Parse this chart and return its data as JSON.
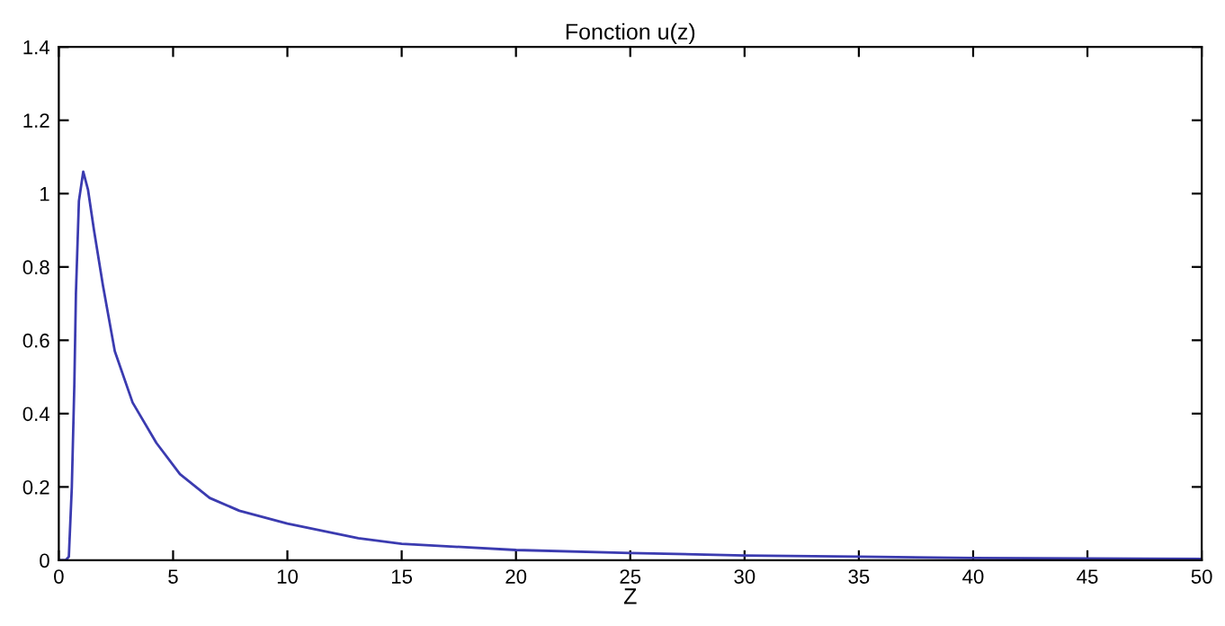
{
  "chart_data": {
    "type": "line",
    "title": "Fonction u(z)",
    "xlabel": "Z",
    "x": [
      0,
      0.3,
      0.44,
      0.57,
      0.68,
      0.75,
      0.88,
      1.07,
      1.28,
      1.54,
      1.93,
      2.45,
      3.23,
      4.27,
      5.3,
      6.6,
      7.9,
      10,
      13.1,
      15,
      20,
      25,
      30,
      35,
      40,
      45,
      50
    ],
    "series": [
      {
        "color": "#3b3bb0",
        "values": [
          0,
          0,
          0.01,
          0.2,
          0.48,
          0.73,
          0.98,
          1.06,
          1.01,
          0.9,
          0.75,
          0.57,
          0.43,
          0.32,
          0.235,
          0.17,
          0.135,
          0.1,
          0.06,
          0.045,
          0.028,
          0.02,
          0.013,
          0.01,
          0.006,
          0.005,
          0.004
        ]
      }
    ],
    "xlim": [
      0,
      50
    ],
    "ylim": [
      0,
      1.4
    ],
    "xticks": [
      0,
      5,
      10,
      15,
      20,
      25,
      30,
      35,
      40,
      45,
      50
    ],
    "yticks": [
      0,
      0.2,
      0.4,
      0.6,
      0.8,
      1,
      1.2,
      1.4
    ],
    "grid": false,
    "legend": false,
    "marker": "none",
    "line_style": "solid"
  }
}
